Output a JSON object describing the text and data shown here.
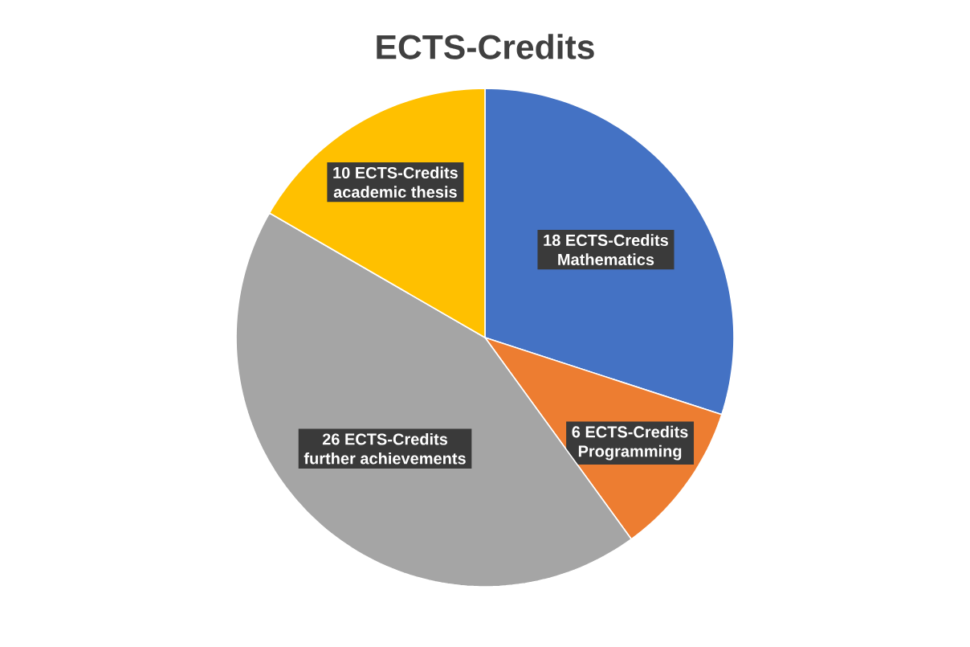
{
  "chart_data": {
    "type": "pie",
    "title": "ECTS-Credits",
    "categories": [
      "Mathematics",
      "Programming",
      "further achievements",
      "academic thesis"
    ],
    "values": [
      18,
      6,
      26,
      10
    ],
    "colors": [
      "#4472c4",
      "#ed7d31",
      "#a5a5a5",
      "#ffc000"
    ],
    "value_labels": [
      "18 ECTS-Credits",
      "6 ECTS-Credits",
      "26 ECTS-Credits",
      "10 ECTS-Credits"
    ]
  }
}
